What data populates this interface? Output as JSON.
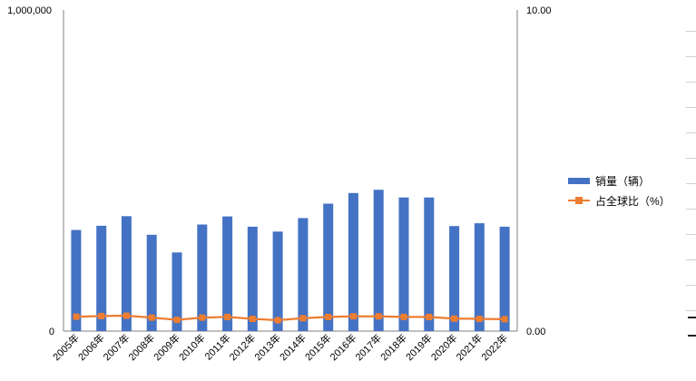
{
  "chart_data": {
    "type": "bar",
    "categories": [
      "2005年",
      "2006年",
      "2007年",
      "2008年",
      "2009年",
      "2010年",
      "2011年",
      "2012年",
      "2013年",
      "2014年",
      "2015年",
      "2016年",
      "2017年",
      "2018年",
      "2019年",
      "2020年",
      "2021年",
      "2022年"
    ],
    "series": [
      {
        "name": "销量（辆）",
        "type": "bar",
        "axis": "left",
        "color": "#4472C4",
        "values": [
          315000,
          328000,
          358000,
          300000,
          245000,
          332000,
          357000,
          325000,
          310000,
          352000,
          397000,
          430000,
          440000,
          416000,
          416000,
          327000,
          336000,
          325000
        ]
      },
      {
        "name": "占全球比（%）",
        "type": "line",
        "axis": "right",
        "color": "#ED7D31",
        "values": [
          0.45,
          0.47,
          0.48,
          0.42,
          0.35,
          0.42,
          0.44,
          0.38,
          0.34,
          0.4,
          0.44,
          0.46,
          0.46,
          0.44,
          0.44,
          0.39,
          0.38,
          0.37
        ]
      }
    ],
    "y_left": {
      "range": [
        0,
        1000000
      ],
      "ticks": [
        "0",
        "1,000,000"
      ]
    },
    "y_right": {
      "range": [
        0,
        10
      ],
      "ticks": [
        "0.00",
        "10.00"
      ]
    },
    "grid": false,
    "legend_position": "right"
  }
}
